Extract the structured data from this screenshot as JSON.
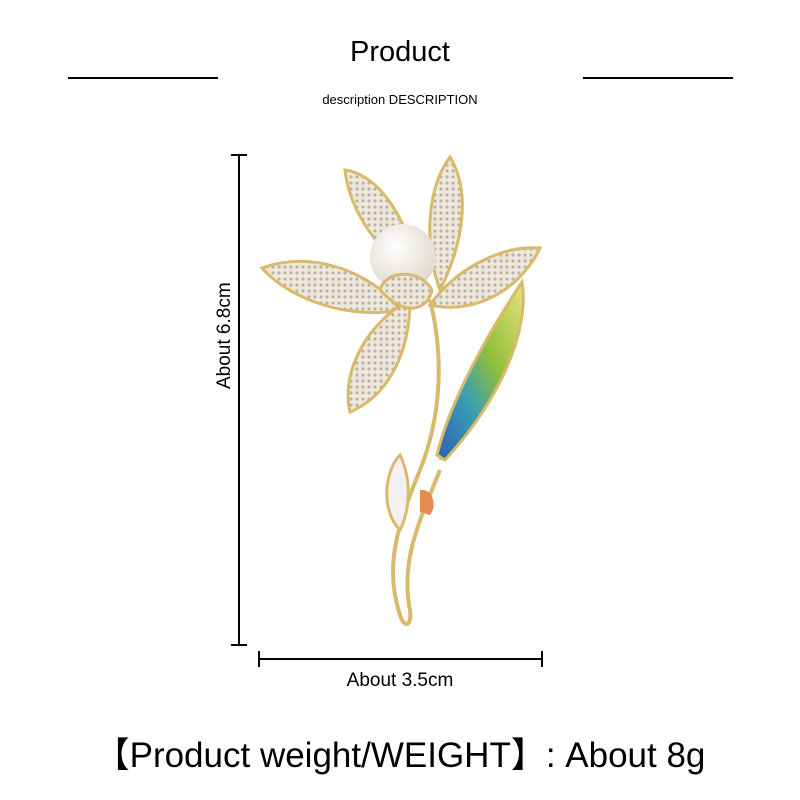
{
  "header": {
    "title": "Product",
    "subtitle": "description DESCRIPTION"
  },
  "dimensions": {
    "height_label": "About 6.8cm",
    "width_label": "About 3.5cm"
  },
  "weight": {
    "label": "【Product weight/WEIGHT】: About 8g"
  },
  "product": {
    "name": "flower-brooch",
    "colors": {
      "gold": "#d9b96a",
      "pearl": "#f4f1ec",
      "leaf_green": "#8fbf3a",
      "leaf_blue": "#2f5fb8"
    }
  }
}
